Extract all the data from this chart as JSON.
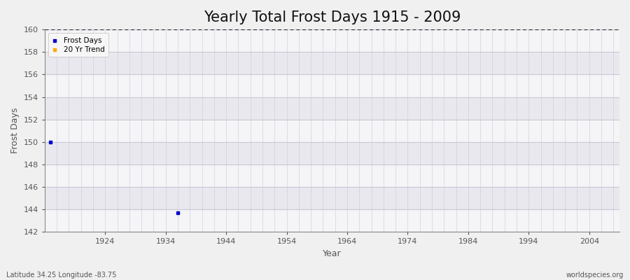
{
  "title": "Yearly Total Frost Days 1915 - 2009",
  "xlabel": "Year",
  "ylabel": "Frost Days",
  "ylim": [
    142,
    160
  ],
  "xlim": [
    1914,
    2009
  ],
  "yticks": [
    142,
    144,
    146,
    148,
    150,
    152,
    154,
    156,
    158,
    160
  ],
  "xticks": [
    1924,
    1934,
    1944,
    1954,
    1964,
    1974,
    1984,
    1994,
    2004
  ],
  "data_points": [
    [
      1915,
      150
    ],
    [
      1936,
      143.7
    ]
  ],
  "point_color": "#0000cc",
  "trend_color": "#ffaa00",
  "bg_outer": "#f0f0f0",
  "bg_plot_light": "#f5f5f8",
  "bg_plot_dark": "#e8e8ee",
  "grid_v_color": "#d0d0da",
  "grid_h_color": "#c8c8d4",
  "dashed_line_y": 160,
  "dashed_line_color": "#333333",
  "legend_labels": [
    "Frost Days",
    "20 Yr Trend"
  ],
  "legend_colors": [
    "#0000cc",
    "#ffaa00"
  ],
  "bottom_left_text": "Latitude 34.25 Longitude -83.75",
  "bottom_right_text": "worldspecies.org",
  "title_fontsize": 15,
  "label_fontsize": 9,
  "tick_fontsize": 8,
  "spine_color": "#888888",
  "tick_label_color": "#555555"
}
